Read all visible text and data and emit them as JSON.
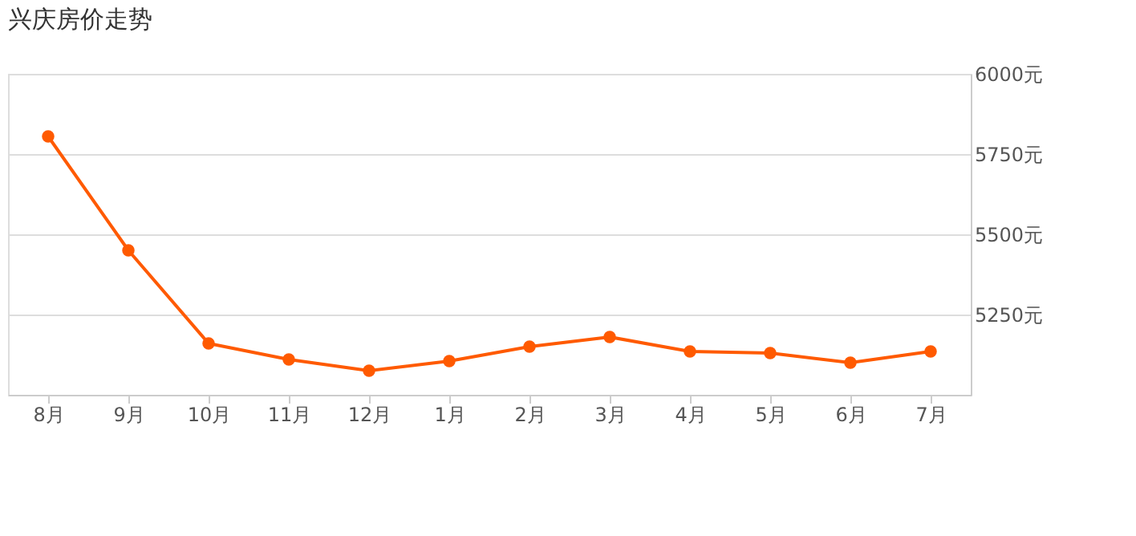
{
  "chart_data": {
    "type": "line",
    "title": "兴庆房价走势",
    "categories": [
      "8月",
      "9月",
      "10月",
      "11月",
      "12月",
      "1月",
      "2月",
      "3月",
      "4月",
      "5月",
      "6月",
      "7月"
    ],
    "series": [
      {
        "color": "#ff5a00",
        "values": [
          5805,
          5450,
          5160,
          5110,
          5075,
          5105,
          5150,
          5180,
          5135,
          5130,
          5100,
          5135
        ]
      }
    ],
    "ylim": [
      5000,
      6000
    ],
    "yticks": [
      {
        "value": 5000,
        "label": null
      },
      {
        "value": 5250,
        "label": "5250元"
      },
      {
        "value": 5500,
        "label": "5500元"
      },
      {
        "value": 5750,
        "label": "5750元"
      },
      {
        "value": 6000,
        "label": "6000元"
      }
    ],
    "grid": "y",
    "marker": "circle",
    "line_style": "solid"
  }
}
